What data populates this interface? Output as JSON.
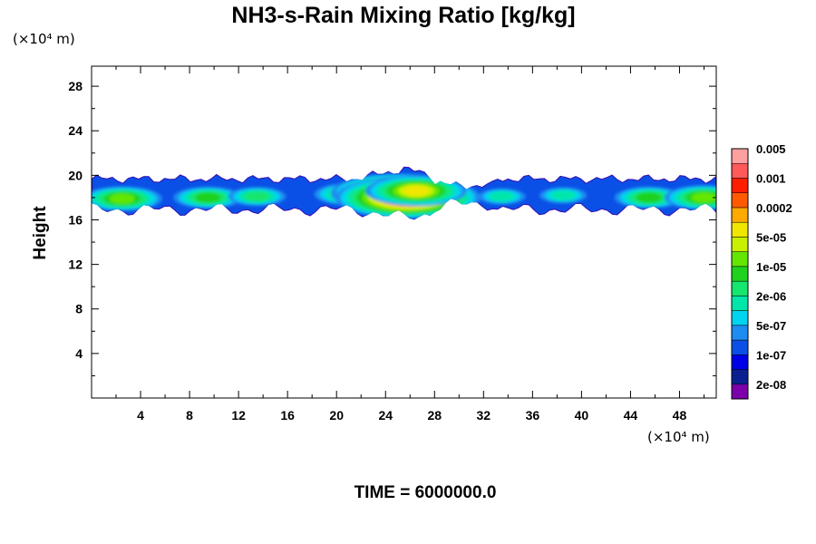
{
  "chart_data": {
    "type": "heatmap",
    "title": "NH3-s-Rain Mixing Ratio [kg/kg]",
    "ylabel": "Height",
    "xlabel": "",
    "x_unit_label": "(×10⁴ m)",
    "y_unit_label": "(×10⁴ m)",
    "time_label": "TIME = 6000000.0",
    "xlim": [
      0,
      51
    ],
    "ylim": [
      0,
      29.8
    ],
    "x_ticks": [
      "4",
      "8",
      "12",
      "16",
      "20",
      "24",
      "28",
      "32",
      "36",
      "40",
      "44",
      "48"
    ],
    "y_ticks": [
      "4",
      "8",
      "12",
      "16",
      "20",
      "24",
      "28"
    ],
    "band": {
      "bottom_range": [
        16.3,
        17.5
      ],
      "top_range": [
        19.3,
        20.8
      ]
    },
    "colorbar": {
      "colors": [
        "#7a00aa",
        "#0a2090",
        "#0000e6",
        "#0a50e6",
        "#1e8cf0",
        "#00d4f0",
        "#00e6aa",
        "#14e66e",
        "#1ed21e",
        "#64e600",
        "#c8f000",
        "#f0e600",
        "#ffaa00",
        "#ff5a00",
        "#ff1e00",
        "#ff5a5a",
        "#ffa0a0"
      ],
      "labels": [
        "2e-08",
        "1e-07",
        "5e-07",
        "2e-06",
        "1e-05",
        "5e-05",
        "0.0002",
        "0.001",
        "0.005"
      ]
    },
    "hotspots": [
      {
        "x": 2.5,
        "y": 17.9,
        "level": 9
      },
      {
        "x": 9.5,
        "y": 18.0,
        "level": 8
      },
      {
        "x": 13.5,
        "y": 18.1,
        "level": 7
      },
      {
        "x": 21.0,
        "y": 18.3,
        "level": 8
      },
      {
        "x": 23.5,
        "y": 18.1,
        "level": 10
      },
      {
        "x": 25.0,
        "y": 18.4,
        "level": 14
      },
      {
        "x": 25.8,
        "y": 18.0,
        "level": 15
      },
      {
        "x": 26.5,
        "y": 18.6,
        "level": 11
      },
      {
        "x": 33.5,
        "y": 18.1,
        "level": 6
      },
      {
        "x": 38.5,
        "y": 18.2,
        "level": 6
      },
      {
        "x": 45.5,
        "y": 18.0,
        "level": 8
      },
      {
        "x": 50.0,
        "y": 18.0,
        "level": 9
      }
    ]
  }
}
